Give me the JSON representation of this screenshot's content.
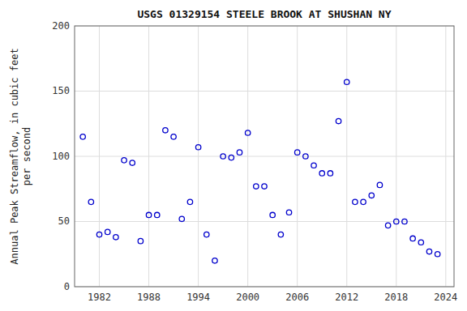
{
  "chart_data": {
    "type": "scatter",
    "title": "USGS 01329154 STEELE BROOK AT SHUSHAN NY",
    "ylabel": "Annual Peak Streamflow, in cubic feet\nper second",
    "x": [
      1980,
      1981,
      1982,
      1983,
      1984,
      1985,
      1986,
      1987,
      1988,
      1989,
      1990,
      1991,
      1992,
      1993,
      1994,
      1995,
      1996,
      1997,
      1998,
      1999,
      2000,
      2001,
      2002,
      2003,
      2004,
      2005,
      2006,
      2007,
      2008,
      2009,
      2010,
      2011,
      2012,
      2013,
      2014,
      2015,
      2016,
      2017,
      2018,
      2019,
      2020,
      2021,
      2022,
      2023
    ],
    "values": [
      115,
      65,
      40,
      42,
      38,
      97,
      95,
      35,
      55,
      55,
      120,
      115,
      52,
      65,
      107,
      40,
      20,
      100,
      99,
      103,
      118,
      77,
      77,
      55,
      40,
      57,
      103,
      100,
      93,
      87,
      87,
      127,
      157,
      65,
      65,
      70,
      78,
      47,
      50,
      50,
      37,
      34,
      27,
      25
    ],
    "color": "#0000cc",
    "marker": "circle",
    "xlim": [
      1979,
      2025
    ],
    "ylim": [
      0,
      200
    ],
    "xticks": [
      1982,
      1988,
      1994,
      2000,
      2006,
      2012,
      2018,
      2024
    ],
    "yticks": [
      0,
      50,
      100,
      150,
      200
    ],
    "grid": true
  }
}
